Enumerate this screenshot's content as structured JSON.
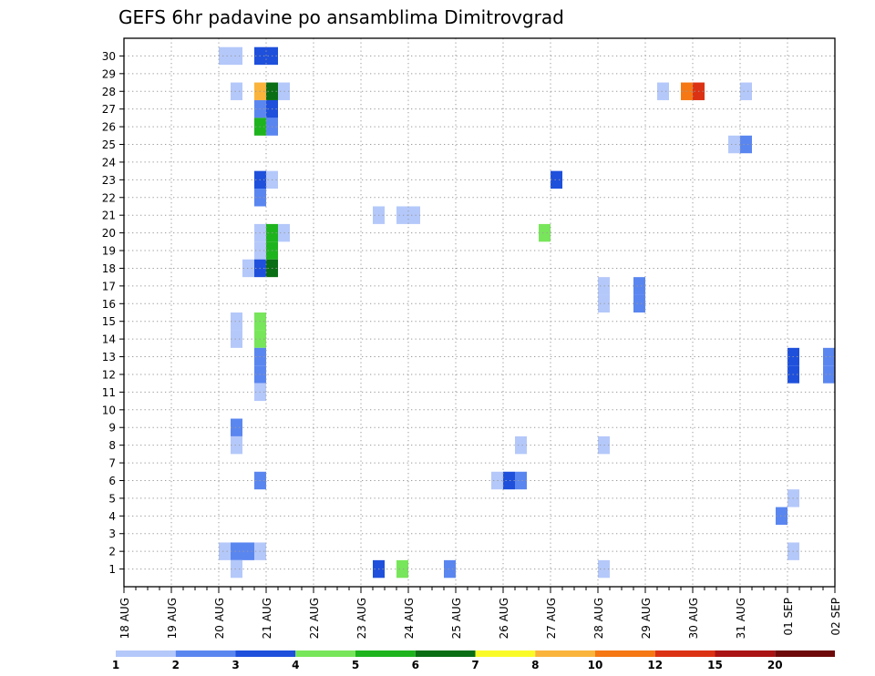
{
  "chart_data": {
    "type": "heatmap",
    "title": "GEFS 6hr padavine po ansamblima Dimitrovgrad",
    "xlabel": "",
    "ylabel": "",
    "x_tick_labels": [
      "18 AUG",
      "19 AUG",
      "20 AUG",
      "21 AUG",
      "22 AUG",
      "23 AUG",
      "24 AUG",
      "25 AUG",
      "26 AUG",
      "27 AUG",
      "28 AUG",
      "29 AUG",
      "30 AUG",
      "31 AUG",
      "01 SEP",
      "02 SEP"
    ],
    "x_range_steps": [
      0,
      60
    ],
    "y_tick_labels": [
      "1",
      "2",
      "3",
      "4",
      "5",
      "6",
      "7",
      "8",
      "9",
      "10",
      "11",
      "12",
      "13",
      "14",
      "15",
      "16",
      "17",
      "18",
      "19",
      "20",
      "21",
      "22",
      "23",
      "24",
      "25",
      "26",
      "27",
      "28",
      "29",
      "30"
    ],
    "grid": true,
    "colorbar": {
      "tick_labels": [
        "1",
        "2",
        "3",
        "4",
        "5",
        "6",
        "7",
        "8",
        "10",
        "12",
        "15",
        "20"
      ],
      "colors": [
        "#b4c8fa",
        "#5a86f0",
        "#1e50dc",
        "#78e65a",
        "#1eb41e",
        "#0a6e14",
        "#fafa28",
        "#fab43c",
        "#f57814",
        "#dc3214",
        "#aa1414",
        "#6e0a0a"
      ]
    },
    "cells": [
      {
        "m": 30,
        "t": 8,
        "v": 1
      },
      {
        "m": 30,
        "t": 9,
        "v": 1
      },
      {
        "m": 30,
        "t": 11,
        "v": 3
      },
      {
        "m": 30,
        "t": 12,
        "v": 3
      },
      {
        "m": 28,
        "t": 9,
        "v": 1
      },
      {
        "m": 28,
        "t": 11,
        "v": 8
      },
      {
        "m": 28,
        "t": 12,
        "v": 6
      },
      {
        "m": 28,
        "t": 13,
        "v": 1
      },
      {
        "m": 28,
        "t": 45,
        "v": 1
      },
      {
        "m": 28,
        "t": 47,
        "v": 10
      },
      {
        "m": 28,
        "t": 48,
        "v": 12
      },
      {
        "m": 28,
        "t": 52,
        "v": 1
      },
      {
        "m": 27,
        "t": 11,
        "v": 2
      },
      {
        "m": 27,
        "t": 12,
        "v": 3
      },
      {
        "m": 26,
        "t": 11,
        "v": 5
      },
      {
        "m": 26,
        "t": 12,
        "v": 2
      },
      {
        "m": 25,
        "t": 51,
        "v": 1
      },
      {
        "m": 25,
        "t": 52,
        "v": 2
      },
      {
        "m": 23,
        "t": 11,
        "v": 3
      },
      {
        "m": 23,
        "t": 12,
        "v": 1
      },
      {
        "m": 23,
        "t": 36,
        "v": 3
      },
      {
        "m": 22,
        "t": 11,
        "v": 2
      },
      {
        "m": 21,
        "t": 21,
        "v": 1
      },
      {
        "m": 21,
        "t": 23,
        "v": 1
      },
      {
        "m": 21,
        "t": 24,
        "v": 1
      },
      {
        "m": 20,
        "t": 11,
        "v": 1
      },
      {
        "m": 20,
        "t": 12,
        "v": 5
      },
      {
        "m": 20,
        "t": 13,
        "v": 1
      },
      {
        "m": 20,
        "t": 35,
        "v": 4
      },
      {
        "m": 19,
        "t": 11,
        "v": 1
      },
      {
        "m": 19,
        "t": 12,
        "v": 5
      },
      {
        "m": 18,
        "t": 10,
        "v": 1
      },
      {
        "m": 18,
        "t": 11,
        "v": 3
      },
      {
        "m": 18,
        "t": 12,
        "v": 6
      },
      {
        "m": 17,
        "t": 40,
        "v": 1
      },
      {
        "m": 17,
        "t": 43,
        "v": 2
      },
      {
        "m": 16,
        "t": 40,
        "v": 1
      },
      {
        "m": 16,
        "t": 43,
        "v": 2
      },
      {
        "m": 15,
        "t": 9,
        "v": 1
      },
      {
        "m": 15,
        "t": 11,
        "v": 4
      },
      {
        "m": 14,
        "t": 9,
        "v": 1
      },
      {
        "m": 14,
        "t": 11,
        "v": 4
      },
      {
        "m": 13,
        "t": 11,
        "v": 2
      },
      {
        "m": 13,
        "t": 56,
        "v": 3
      },
      {
        "m": 13,
        "t": 59,
        "v": 2
      },
      {
        "m": 12,
        "t": 11,
        "v": 2
      },
      {
        "m": 12,
        "t": 56,
        "v": 3
      },
      {
        "m": 12,
        "t": 59,
        "v": 2
      },
      {
        "m": 11,
        "t": 11,
        "v": 1
      },
      {
        "m": 9,
        "t": 9,
        "v": 2
      },
      {
        "m": 8,
        "t": 9,
        "v": 1
      },
      {
        "m": 8,
        "t": 33,
        "v": 1
      },
      {
        "m": 8,
        "t": 40,
        "v": 1
      },
      {
        "m": 6,
        "t": 11,
        "v": 2
      },
      {
        "m": 6,
        "t": 31,
        "v": 1
      },
      {
        "m": 6,
        "t": 32,
        "v": 3
      },
      {
        "m": 6,
        "t": 33,
        "v": 2
      },
      {
        "m": 5,
        "t": 56,
        "v": 1
      },
      {
        "m": 4,
        "t": 55,
        "v": 2
      },
      {
        "m": 2,
        "t": 8,
        "v": 1
      },
      {
        "m": 2,
        "t": 9,
        "v": 2
      },
      {
        "m": 2,
        "t": 10,
        "v": 2
      },
      {
        "m": 2,
        "t": 11,
        "v": 1
      },
      {
        "m": 2,
        "t": 56,
        "v": 1
      },
      {
        "m": 1,
        "t": 9,
        "v": 1
      },
      {
        "m": 1,
        "t": 21,
        "v": 3
      },
      {
        "m": 1,
        "t": 23,
        "v": 4
      },
      {
        "m": 1,
        "t": 27,
        "v": 2
      },
      {
        "m": 1,
        "t": 40,
        "v": 1
      }
    ]
  }
}
